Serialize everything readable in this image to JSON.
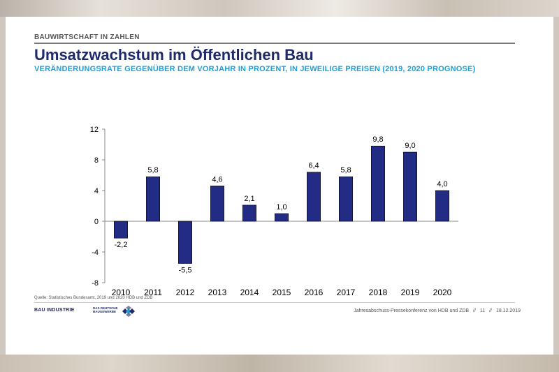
{
  "header": {
    "section_label": "BAUWIRTSCHAFT IN ZAHLEN",
    "title": "Umsatzwachstum im Öffentlichen Bau",
    "subtitle": "VERÄNDERUNGSRATE GEGENÜBER DEM VORJAHR IN PROZENT, IN JEWEILIGE PREISEN (2019, 2020 PROGNOSE)"
  },
  "chart_data": {
    "type": "bar",
    "categories": [
      "2010",
      "2011",
      "2012",
      "2013",
      "2014",
      "2015",
      "2016",
      "2017",
      "2018",
      "2019",
      "2020"
    ],
    "values": [
      -2.2,
      5.8,
      -5.5,
      4.6,
      2.1,
      1.0,
      6.4,
      5.8,
      9.8,
      9.0,
      4.0
    ],
    "value_labels": [
      "-2,2",
      "5,8",
      "-5,5",
      "4,6",
      "2,1",
      "1,0",
      "6,4",
      "5,8",
      "9,8",
      "9,0",
      "4,0"
    ],
    "ylim": [
      -8,
      12
    ],
    "yticks": [
      -8,
      -4,
      0,
      4,
      8,
      12
    ],
    "ytick_labels": [
      "-8",
      "-4",
      "0",
      "4",
      "8",
      "12"
    ],
    "bar_color": "#232c85",
    "grid": false,
    "legend": "none"
  },
  "source": "Quelle: Statistisches Bundesamt, 2019 und 2020 HDB und ZDB",
  "footer": {
    "logo_bauindustrie": "BAU INDUSTRIE",
    "logo_zdb": "DAS DEUTSCHE BAUGEWERBE",
    "event": "Jahresabschuss-Pressekonferenz von HDB und ZDB",
    "sep1": "//",
    "page": "11",
    "sep2": "//",
    "date": "18.12.2019"
  },
  "colors": {
    "title": "#1f2a6b",
    "subtitle": "#1ea0d6",
    "bars": "#232c85"
  }
}
